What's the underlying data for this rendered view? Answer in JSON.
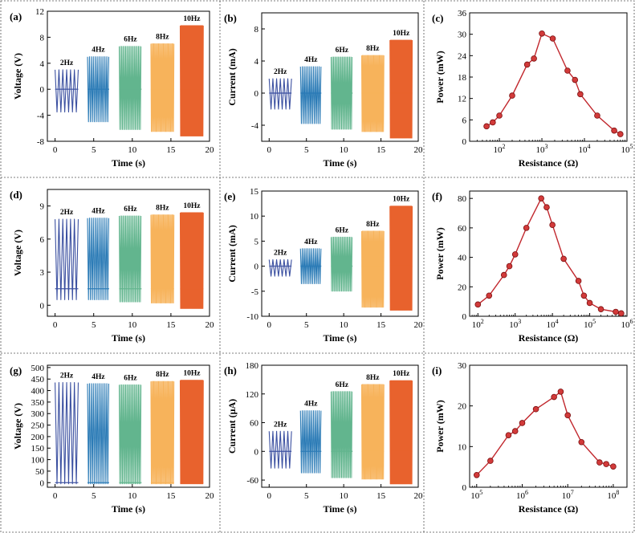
{
  "figure": {
    "colors": {
      "freq2": "#3a4fa0",
      "freq4": "#2b7bb6",
      "freq6": "#62b58e",
      "freq8": "#f7b35b",
      "freq10": "#e8622d",
      "power_line": "#c1272d",
      "power_marker": "#d23a3a"
    }
  },
  "chart_data": [
    {
      "id": "a",
      "panel_label": "(a)",
      "type": "line",
      "xlabel": "Time (s)",
      "ylabel": "Voltage (V)",
      "xlim": [
        -1,
        20
      ],
      "ylim": [
        -8,
        12
      ],
      "xticks": [
        "0",
        "5",
        "10",
        "15",
        "20"
      ],
      "yticks": [
        "-8",
        "-4",
        "0",
        "4",
        "8",
        "12"
      ],
      "segments": [
        {
          "label": "2Hz",
          "t": [
            0,
            3
          ],
          "min": -3.5,
          "max": 3.0,
          "base": 0
        },
        {
          "label": "4Hz",
          "t": [
            4.2,
            7
          ],
          "min": -5.0,
          "max": 5.0,
          "base": 0
        },
        {
          "label": "6Hz",
          "t": [
            8.3,
            11.2
          ],
          "min": -6.2,
          "max": 6.6,
          "base": 0
        },
        {
          "label": "8Hz",
          "t": [
            12.4,
            15.4
          ],
          "min": -6.5,
          "max": 7.0,
          "base": 0
        },
        {
          "label": "10Hz",
          "t": [
            16.2,
            19.2
          ],
          "min": -7.2,
          "max": 9.8,
          "base": 0
        }
      ]
    },
    {
      "id": "b",
      "panel_label": "(b)",
      "type": "line",
      "xlabel": "Time (s)",
      "ylabel": "Current (mA)",
      "xlim": [
        -1,
        20
      ],
      "ylim": [
        -6,
        10
      ],
      "xticks": [
        "0",
        "5",
        "10",
        "15",
        "20"
      ],
      "yticks": [
        "-4",
        "0",
        "4",
        "8"
      ],
      "segments": [
        {
          "label": "2Hz",
          "t": [
            0,
            3
          ],
          "min": -2.0,
          "max": 1.8,
          "base": 0
        },
        {
          "label": "4Hz",
          "t": [
            4.2,
            7
          ],
          "min": -3.8,
          "max": 3.3,
          "base": 0
        },
        {
          "label": "6Hz",
          "t": [
            8.3,
            11.2
          ],
          "min": -4.5,
          "max": 4.5,
          "base": 0
        },
        {
          "label": "8Hz",
          "t": [
            12.4,
            15.4
          ],
          "min": -4.8,
          "max": 4.7,
          "base": 0
        },
        {
          "label": "10Hz",
          "t": [
            16.2,
            19.2
          ],
          "min": -5.6,
          "max": 6.6,
          "base": 0
        }
      ]
    },
    {
      "id": "c",
      "panel_label": "(c)",
      "type": "line",
      "xscale": "log",
      "xlabel": "Resistance (Ω)",
      "ylabel": "Power (mW)",
      "xlim": [
        20,
        100000
      ],
      "ylim": [
        0,
        36
      ],
      "xticks": [
        {
          "value": 100,
          "base": "10",
          "exp": "2"
        },
        {
          "value": 1000,
          "base": "10",
          "exp": "3"
        },
        {
          "value": 10000,
          "base": "10",
          "exp": "4"
        },
        {
          "value": 100000,
          "base": "10",
          "exp": "5"
        }
      ],
      "yticks": [
        "0",
        "6",
        "12",
        "18",
        "24",
        "30",
        "36"
      ],
      "x": [
        50,
        70,
        100,
        200,
        450,
        650,
        1000,
        1800,
        4000,
        6000,
        8000,
        20000,
        50000,
        70000
      ],
      "y": [
        4.2,
        5.3,
        7.2,
        12.8,
        21.5,
        23.2,
        30.2,
        28.8,
        19.8,
        17.2,
        13.2,
        7.2,
        3.0,
        2.0
      ]
    },
    {
      "id": "d",
      "panel_label": "(d)",
      "type": "line",
      "xlabel": "Time (s)",
      "ylabel": "Voltage (V)",
      "xlim": [
        -1,
        20
      ],
      "ylim": [
        -1,
        10.5
      ],
      "xticks": [
        "0",
        "5",
        "10",
        "15",
        "20"
      ],
      "yticks": [
        "0",
        "3",
        "6",
        "9"
      ],
      "segments": [
        {
          "label": "2Hz",
          "t": [
            0,
            3
          ],
          "min": 0.5,
          "max": 7.8,
          "base": 1.5
        },
        {
          "label": "4Hz",
          "t": [
            4.2,
            7
          ],
          "min": 0.5,
          "max": 7.9,
          "base": 1.5
        },
        {
          "label": "6Hz",
          "t": [
            8.3,
            11.2
          ],
          "min": 0.3,
          "max": 8.1,
          "base": 1.5
        },
        {
          "label": "8Hz",
          "t": [
            12.4,
            15.4
          ],
          "min": 0.2,
          "max": 8.2,
          "base": 1.5
        },
        {
          "label": "10Hz",
          "t": [
            16.2,
            19.2
          ],
          "min": -0.3,
          "max": 8.4,
          "base": 1.5
        }
      ]
    },
    {
      "id": "e",
      "panel_label": "(e)",
      "type": "line",
      "xlabel": "Time (s)",
      "ylabel": "Current (mA)",
      "xlim": [
        -1,
        20
      ],
      "ylim": [
        -10,
        15
      ],
      "xticks": [
        "0",
        "5",
        "10",
        "15",
        "20"
      ],
      "yticks": [
        "-10",
        "-5",
        "0",
        "5",
        "10",
        "15"
      ],
      "segments": [
        {
          "label": "2Hz",
          "t": [
            0,
            3
          ],
          "min": -2.0,
          "max": 1.3,
          "base": 0
        },
        {
          "label": "4Hz",
          "t": [
            4.2,
            7
          ],
          "min": -3.5,
          "max": 3.5,
          "base": 0
        },
        {
          "label": "6Hz",
          "t": [
            8.3,
            11.2
          ],
          "min": -5.0,
          "max": 5.8,
          "base": 0
        },
        {
          "label": "8Hz",
          "t": [
            12.4,
            15.4
          ],
          "min": -8.2,
          "max": 7.0,
          "base": 0
        },
        {
          "label": "10Hz",
          "t": [
            16.2,
            19.2
          ],
          "min": -8.8,
          "max": 12.0,
          "base": 0
        }
      ]
    },
    {
      "id": "f",
      "panel_label": "(f)",
      "type": "line",
      "xscale": "log",
      "xlabel": "Resistance (Ω)",
      "ylabel": "Power (mW)",
      "xlim": [
        60,
        1000000
      ],
      "ylim": [
        0,
        85
      ],
      "xticks": [
        {
          "value": 100,
          "base": "10",
          "exp": "2"
        },
        {
          "value": 1000,
          "base": "10",
          "exp": "3"
        },
        {
          "value": 10000,
          "base": "10",
          "exp": "4"
        },
        {
          "value": 100000,
          "base": "10",
          "exp": "5"
        },
        {
          "value": 1000000,
          "base": "10",
          "exp": "6"
        }
      ],
      "yticks": [
        "0",
        "20",
        "40",
        "60",
        "80"
      ],
      "x": [
        100,
        200,
        500,
        700,
        1000,
        2000,
        5000,
        7000,
        10000,
        20000,
        50000,
        70000,
        100000,
        200000,
        500000,
        700000
      ],
      "y": [
        8,
        14,
        28,
        34,
        42,
        60,
        80,
        74,
        62,
        39,
        24,
        14,
        9,
        4.8,
        3,
        2
      ]
    },
    {
      "id": "g",
      "panel_label": "(g)",
      "type": "line",
      "xlabel": "Time (s)",
      "ylabel": "Voltage (V)",
      "xlim": [
        -1,
        20
      ],
      "ylim": [
        -20,
        510
      ],
      "xticks": [
        "0",
        "5",
        "10",
        "15",
        "20"
      ],
      "yticks": [
        "0",
        "50",
        "100",
        "150",
        "200",
        "250",
        "300",
        "350",
        "400",
        "450",
        "500"
      ],
      "segments": [
        {
          "label": "2Hz",
          "t": [
            0,
            3
          ],
          "min": -5,
          "max": 435,
          "base": 0
        },
        {
          "label": "4Hz",
          "t": [
            4.2,
            7
          ],
          "min": -5,
          "max": 430,
          "base": 0
        },
        {
          "label": "6Hz",
          "t": [
            8.3,
            11.2
          ],
          "min": -5,
          "max": 425,
          "base": 0
        },
        {
          "label": "8Hz",
          "t": [
            12.4,
            15.4
          ],
          "min": -5,
          "max": 440,
          "base": 0
        },
        {
          "label": "10Hz",
          "t": [
            16.2,
            19.2
          ],
          "min": -5,
          "max": 445,
          "base": 0
        }
      ]
    },
    {
      "id": "h",
      "panel_label": "(h)",
      "type": "line",
      "xlabel": "Time (s)",
      "ylabel": "Current (μA)",
      "xlim": [
        -1,
        20
      ],
      "ylim": [
        -75,
        180
      ],
      "xticks": [
        "0",
        "5",
        "10",
        "15",
        "20"
      ],
      "yticks": [
        "-60",
        "0",
        "60",
        "120",
        "180"
      ],
      "segments": [
        {
          "label": "2Hz",
          "t": [
            0,
            3
          ],
          "min": -35,
          "max": 42,
          "base": 0
        },
        {
          "label": "4Hz",
          "t": [
            4.2,
            7
          ],
          "min": -45,
          "max": 85,
          "base": 0
        },
        {
          "label": "6Hz",
          "t": [
            8.3,
            11.2
          ],
          "min": -55,
          "max": 125,
          "base": 0
        },
        {
          "label": "8Hz",
          "t": [
            12.4,
            15.4
          ],
          "min": -58,
          "max": 140,
          "base": 0
        },
        {
          "label": "10Hz",
          "t": [
            16.2,
            19.2
          ],
          "min": -68,
          "max": 148,
          "base": 0
        }
      ]
    },
    {
      "id": "i",
      "panel_label": "(i)",
      "type": "line",
      "xscale": "log",
      "xlabel": "Resistance (Ω)",
      "ylabel": "Power (mW)",
      "xlim": [
        70000,
        200000000
      ],
      "ylim": [
        0,
        30
      ],
      "xticks": [
        {
          "value": 100000,
          "base": "10",
          "exp": "5"
        },
        {
          "value": 1000000,
          "base": "10",
          "exp": "6"
        },
        {
          "value": 10000000,
          "base": "10",
          "exp": "7"
        },
        {
          "value": 100000000,
          "base": "10",
          "exp": "8"
        }
      ],
      "yticks": [
        "0",
        "10",
        "20",
        "30"
      ],
      "x": [
        100000,
        200000,
        500000,
        700000,
        1000000,
        2000000,
        5000000,
        7000000,
        10000000,
        20000000,
        50000000,
        70000000,
        100000000
      ],
      "y": [
        3,
        6.5,
        12.8,
        13.8,
        15.8,
        19.2,
        22.2,
        23.5,
        17.7,
        11.1,
        6.1,
        5.7,
        5.1
      ]
    }
  ]
}
